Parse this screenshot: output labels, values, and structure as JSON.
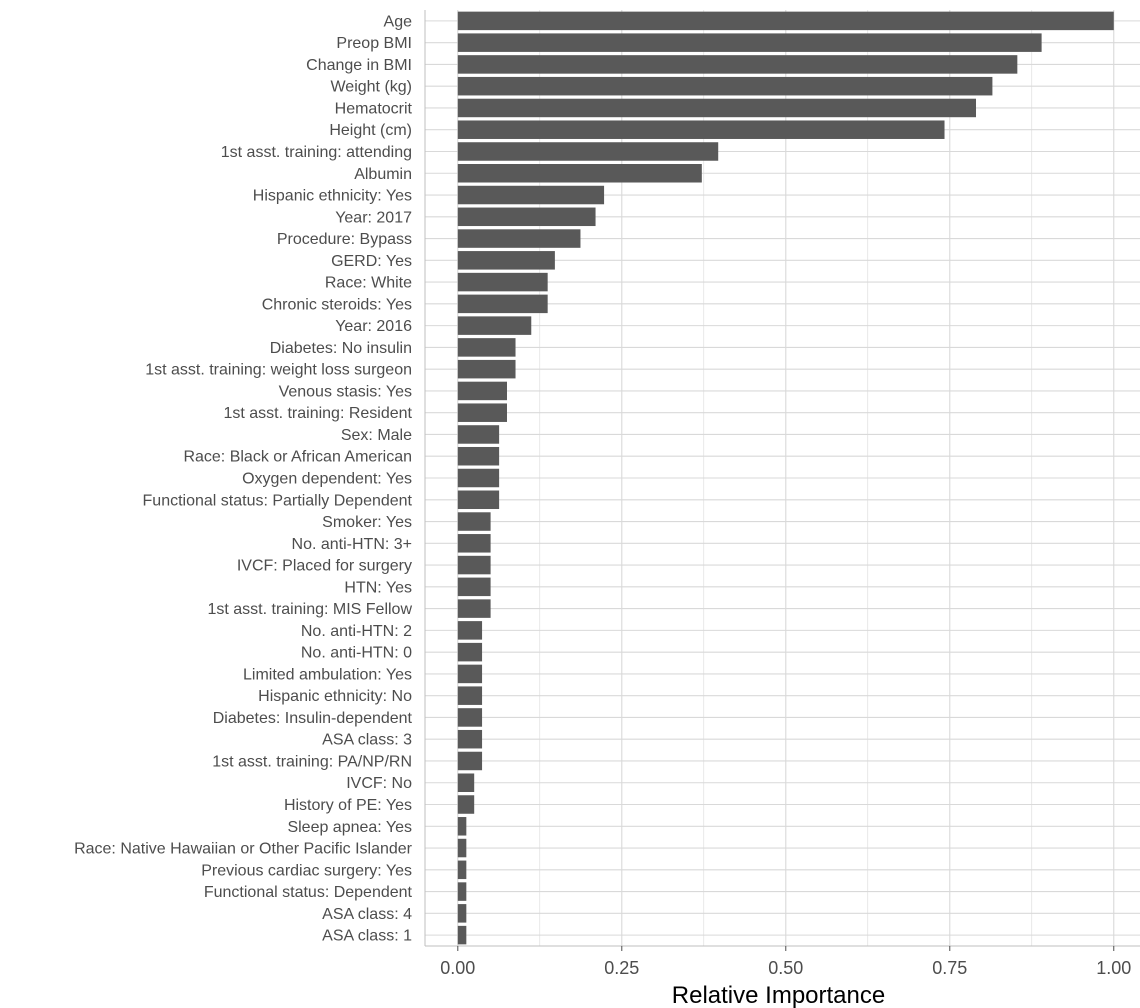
{
  "chart_data": {
    "type": "bar",
    "orientation": "horizontal",
    "title": "",
    "xlabel": "Relative Importance",
    "ylabel": "",
    "xlim": [
      -0.05,
      1.04
    ],
    "xticks": [
      0.0,
      0.25,
      0.5,
      0.75,
      1.0
    ],
    "xtick_labels": [
      "0.00",
      "0.25",
      "0.50",
      "0.75",
      "1.00"
    ],
    "grid": true,
    "bar_color": "#595959",
    "grid_color": "#d9d9d9",
    "categories": [
      "Age",
      "Preop BMI",
      "Change in BMI",
      "Weight (kg)",
      "Hematocrit",
      "Height (cm)",
      "1st asst. training: attending",
      "Albumin",
      "Hispanic ethnicity: Yes",
      "Year: 2017",
      "Procedure: Bypass",
      "GERD: Yes",
      "Race: White",
      "Chronic steroids: Yes",
      "Year: 2016",
      "Diabetes: No insulin",
      "1st asst. training: weight loss surgeon",
      "Venous stasis: Yes",
      "1st asst. training: Resident",
      "Sex: Male",
      "Race: Black or African American",
      "Oxygen dependent: Yes",
      "Functional status: Partially Dependent",
      "Smoker: Yes",
      "No. anti-HTN: 3+",
      "IVCF: Placed for surgery",
      "HTN: Yes",
      "1st asst. training: MIS Fellow",
      "No. anti-HTN: 2",
      "No. anti-HTN: 0",
      "Limited ambulation: Yes",
      "Hispanic ethnicity: No",
      "Diabetes: Insulin-dependent",
      "ASA class: 3",
      "1st asst. training: PA/NP/RN",
      "IVCF: No",
      "History of PE: Yes",
      "Sleep apnea: Yes",
      "Race: Native Hawaiian or Other Pacific Islander",
      "Previous cardiac surgery: Yes",
      "Functional status: Dependent",
      "ASA class: 4",
      "ASA class: 1"
    ],
    "values": [
      1.0,
      0.89,
      0.853,
      0.815,
      0.79,
      0.742,
      0.397,
      0.372,
      0.223,
      0.21,
      0.187,
      0.148,
      0.137,
      0.137,
      0.112,
      0.088,
      0.088,
      0.075,
      0.075,
      0.063,
      0.063,
      0.063,
      0.063,
      0.05,
      0.05,
      0.05,
      0.05,
      0.05,
      0.037,
      0.037,
      0.037,
      0.037,
      0.037,
      0.037,
      0.037,
      0.025,
      0.025,
      0.013,
      0.013,
      0.013,
      0.013,
      0.013,
      0.013
    ]
  }
}
